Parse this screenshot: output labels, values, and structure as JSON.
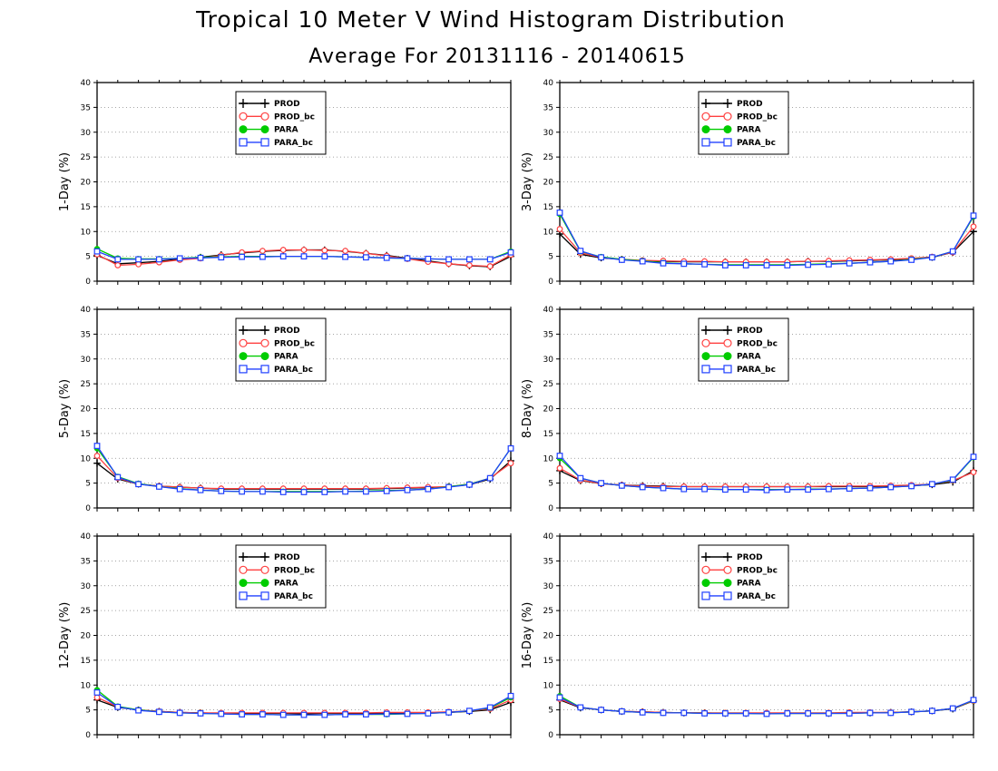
{
  "title": "Tropical 10 Meter V Wind Histogram Distribution",
  "subtitle": "Average For 20131116 - 20140615",
  "legend": [
    {
      "name": "PROD",
      "color": "#000000",
      "marker": "plus"
    },
    {
      "name": "PROD_bc",
      "color": "#ff4040",
      "marker": "open-circle"
    },
    {
      "name": "PARA",
      "color": "#00cc00",
      "marker": "filled-circle"
    },
    {
      "name": "PARA_bc",
      "color": "#2040ff",
      "marker": "open-square"
    }
  ],
  "chart_data": [
    {
      "type": "line",
      "ylabel": "1-Day (%)",
      "ylim": [
        0,
        40
      ],
      "yticks": [
        0,
        5,
        10,
        15,
        20,
        25,
        30,
        35,
        40
      ],
      "grid": "horizontal-dotted",
      "legend_position": "top-center",
      "x": [
        1,
        2,
        3,
        4,
        5,
        6,
        7,
        8,
        9,
        10,
        11,
        12,
        13,
        14,
        15,
        16,
        17,
        18,
        19,
        20,
        21
      ],
      "series": [
        {
          "name": "PROD",
          "values": [
            5.2,
            3.5,
            3.7,
            4.0,
            4.5,
            4.8,
            5.3,
            5.7,
            6.0,
            6.2,
            6.3,
            6.3,
            6.0,
            5.6,
            5.2,
            4.6,
            4.1,
            3.5,
            3.1,
            2.9,
            5.0
          ]
        },
        {
          "name": "PROD_bc",
          "values": [
            5.4,
            3.2,
            3.4,
            3.8,
            4.3,
            4.6,
            5.2,
            5.8,
            6.1,
            6.3,
            6.3,
            6.2,
            6.1,
            5.6,
            5.1,
            4.5,
            3.9,
            3.5,
            3.2,
            3.0,
            5.3
          ]
        },
        {
          "name": "PARA",
          "values": [
            6.5,
            4.6,
            4.5,
            4.5,
            4.6,
            4.8,
            4.9,
            5.0,
            5.0,
            5.0,
            5.0,
            5.0,
            4.9,
            4.8,
            4.7,
            4.6,
            4.5,
            4.4,
            4.4,
            4.4,
            6.0
          ]
        },
        {
          "name": "PARA_bc",
          "values": [
            6.0,
            4.4,
            4.4,
            4.4,
            4.6,
            4.7,
            4.8,
            4.9,
            4.9,
            5.0,
            5.0,
            5.0,
            4.9,
            4.8,
            4.7,
            4.6,
            4.5,
            4.4,
            4.4,
            4.4,
            5.8
          ]
        }
      ]
    },
    {
      "type": "line",
      "ylabel": "3-Day (%)",
      "ylim": [
        0,
        40
      ],
      "yticks": [
        0,
        5,
        10,
        15,
        20,
        25,
        30,
        35,
        40
      ],
      "grid": "horizontal-dotted",
      "legend_position": "top-center",
      "x": [
        1,
        2,
        3,
        4,
        5,
        6,
        7,
        8,
        9,
        10,
        11,
        12,
        13,
        14,
        15,
        16,
        17,
        18,
        19,
        20,
        21
      ],
      "series": [
        {
          "name": "PROD",
          "values": [
            9.5,
            5.4,
            4.7,
            4.4,
            4.1,
            4.0,
            3.9,
            3.9,
            3.9,
            3.9,
            3.9,
            3.9,
            4.0,
            4.0,
            4.1,
            4.2,
            4.3,
            4.5,
            4.8,
            5.8,
            10.0
          ]
        },
        {
          "name": "PROD_bc",
          "values": [
            10.5,
            5.7,
            4.8,
            4.4,
            4.2,
            4.1,
            4.0,
            4.0,
            3.9,
            3.9,
            3.9,
            3.9,
            4.0,
            4.1,
            4.2,
            4.3,
            4.4,
            4.6,
            4.9,
            5.8,
            11.0
          ]
        },
        {
          "name": "PARA",
          "values": [
            13.5,
            6.0,
            4.9,
            4.4,
            4.1,
            3.7,
            3.5,
            3.4,
            3.3,
            3.3,
            3.3,
            3.3,
            3.4,
            3.5,
            3.6,
            3.8,
            4.0,
            4.4,
            4.8,
            6.0,
            13.0
          ]
        },
        {
          "name": "PARA_bc",
          "values": [
            13.8,
            6.1,
            4.8,
            4.3,
            4.0,
            3.6,
            3.5,
            3.4,
            3.2,
            3.2,
            3.2,
            3.2,
            3.3,
            3.4,
            3.6,
            3.8,
            4.0,
            4.3,
            4.8,
            6.0,
            13.2
          ]
        }
      ]
    },
    {
      "type": "line",
      "ylabel": "5-Day (%)",
      "ylim": [
        0,
        40
      ],
      "yticks": [
        0,
        5,
        10,
        15,
        20,
        25,
        30,
        35,
        40
      ],
      "grid": "horizontal-dotted",
      "legend_position": "top-center",
      "x": [
        1,
        2,
        3,
        4,
        5,
        6,
        7,
        8,
        9,
        10,
        11,
        12,
        13,
        14,
        15,
        16,
        17,
        18,
        19,
        20,
        21
      ],
      "series": [
        {
          "name": "PROD",
          "values": [
            9.0,
            5.8,
            4.8,
            4.4,
            4.2,
            4.0,
            3.8,
            3.8,
            3.8,
            3.8,
            3.8,
            3.8,
            3.8,
            3.8,
            3.9,
            4.0,
            4.1,
            4.3,
            4.7,
            5.8,
            9.5
          ]
        },
        {
          "name": "PROD_bc",
          "values": [
            10.5,
            6.0,
            4.8,
            4.4,
            4.2,
            4.0,
            3.9,
            3.9,
            3.9,
            3.9,
            3.9,
            3.9,
            3.9,
            3.9,
            4.0,
            4.1,
            4.2,
            4.3,
            4.8,
            6.0,
            9.0
          ]
        },
        {
          "name": "PARA",
          "values": [
            12.0,
            6.3,
            4.9,
            4.3,
            3.9,
            3.6,
            3.4,
            3.3,
            3.3,
            3.3,
            3.3,
            3.3,
            3.3,
            3.4,
            3.5,
            3.6,
            3.8,
            4.3,
            4.8,
            6.0,
            12.0
          ]
        },
        {
          "name": "PARA_bc",
          "values": [
            12.5,
            6.2,
            4.8,
            4.3,
            3.8,
            3.6,
            3.4,
            3.3,
            3.3,
            3.2,
            3.2,
            3.2,
            3.3,
            3.3,
            3.4,
            3.6,
            3.8,
            4.2,
            4.7,
            6.0,
            12.0
          ]
        }
      ]
    },
    {
      "type": "line",
      "ylabel": "8-Day (%)",
      "ylim": [
        0,
        40
      ],
      "yticks": [
        0,
        5,
        10,
        15,
        20,
        25,
        30,
        35,
        40
      ],
      "grid": "horizontal-dotted",
      "legend_position": "top-center",
      "x": [
        1,
        2,
        3,
        4,
        5,
        6,
        7,
        8,
        9,
        10,
        11,
        12,
        13,
        14,
        15,
        16,
        17,
        18,
        19,
        20,
        21
      ],
      "series": [
        {
          "name": "PROD",
          "values": [
            7.5,
            5.5,
            4.9,
            4.6,
            4.5,
            4.4,
            4.3,
            4.3,
            4.3,
            4.3,
            4.3,
            4.3,
            4.3,
            4.3,
            4.3,
            4.3,
            4.4,
            4.5,
            4.7,
            5.2,
            7.5
          ]
        },
        {
          "name": "PROD_bc",
          "values": [
            8.0,
            5.6,
            4.9,
            4.6,
            4.4,
            4.3,
            4.3,
            4.3,
            4.3,
            4.3,
            4.3,
            4.3,
            4.3,
            4.4,
            4.4,
            4.4,
            4.5,
            4.6,
            4.8,
            5.5,
            7.2
          ]
        },
        {
          "name": "PARA",
          "values": [
            10.0,
            6.0,
            5.0,
            4.5,
            4.2,
            4.0,
            3.8,
            3.8,
            3.7,
            3.7,
            3.7,
            3.7,
            3.8,
            3.8,
            3.9,
            4.0,
            4.2,
            4.4,
            4.8,
            5.6,
            10.2
          ]
        },
        {
          "name": "PARA_bc",
          "values": [
            10.5,
            6.0,
            5.0,
            4.5,
            4.2,
            4.0,
            3.8,
            3.8,
            3.7,
            3.7,
            3.6,
            3.7,
            3.7,
            3.8,
            3.9,
            4.0,
            4.2,
            4.4,
            4.8,
            5.7,
            10.3
          ]
        }
      ]
    },
    {
      "type": "line",
      "ylabel": "12-Day (%)",
      "ylim": [
        0,
        40
      ],
      "yticks": [
        0,
        5,
        10,
        15,
        20,
        25,
        30,
        35,
        40
      ],
      "grid": "horizontal-dotted",
      "legend_position": "top-center",
      "x": [
        1,
        2,
        3,
        4,
        5,
        6,
        7,
        8,
        9,
        10,
        11,
        12,
        13,
        14,
        15,
        16,
        17,
        18,
        19,
        20,
        21
      ],
      "series": [
        {
          "name": "PROD",
          "values": [
            7.0,
            5.5,
            5.0,
            4.7,
            4.5,
            4.4,
            4.3,
            4.3,
            4.3,
            4.3,
            4.2,
            4.3,
            4.3,
            4.3,
            4.3,
            4.4,
            4.4,
            4.5,
            4.7,
            5.0,
            6.5
          ]
        },
        {
          "name": "PROD_bc",
          "values": [
            7.5,
            5.6,
            5.0,
            4.7,
            4.5,
            4.4,
            4.4,
            4.4,
            4.4,
            4.4,
            4.4,
            4.4,
            4.4,
            4.4,
            4.5,
            4.5,
            4.5,
            4.6,
            4.8,
            5.2,
            7.0
          ]
        },
        {
          "name": "PARA",
          "values": [
            9.0,
            5.7,
            5.0,
            4.6,
            4.4,
            4.3,
            4.2,
            4.1,
            4.1,
            4.0,
            4.0,
            4.0,
            4.1,
            4.1,
            4.1,
            4.2,
            4.3,
            4.5,
            4.8,
            5.4,
            7.5
          ]
        },
        {
          "name": "PARA_bc",
          "values": [
            8.5,
            5.6,
            4.9,
            4.6,
            4.4,
            4.3,
            4.2,
            4.1,
            4.1,
            4.0,
            4.0,
            4.0,
            4.1,
            4.1,
            4.2,
            4.2,
            4.3,
            4.5,
            4.8,
            5.5,
            7.8
          ]
        }
      ]
    },
    {
      "type": "line",
      "ylabel": "16-Day (%)",
      "ylim": [
        0,
        40
      ],
      "yticks": [
        0,
        5,
        10,
        15,
        20,
        25,
        30,
        35,
        40
      ],
      "grid": "horizontal-dotted",
      "legend_position": "top-center",
      "x": [
        1,
        2,
        3,
        4,
        5,
        6,
        7,
        8,
        9,
        10,
        11,
        12,
        13,
        14,
        15,
        16,
        17,
        18,
        19,
        20,
        21
      ],
      "series": [
        {
          "name": "PROD",
          "values": [
            7.0,
            5.4,
            5.0,
            4.7,
            4.6,
            4.5,
            4.4,
            4.4,
            4.3,
            4.3,
            4.3,
            4.3,
            4.3,
            4.3,
            4.4,
            4.4,
            4.5,
            4.6,
            4.8,
            5.2,
            6.8
          ]
        },
        {
          "name": "PROD_bc",
          "values": [
            7.2,
            5.5,
            5.0,
            4.7,
            4.6,
            4.5,
            4.4,
            4.4,
            4.4,
            4.4,
            4.4,
            4.4,
            4.4,
            4.4,
            4.5,
            4.5,
            4.5,
            4.6,
            4.8,
            5.3,
            6.8
          ]
        },
        {
          "name": "PARA",
          "values": [
            7.8,
            5.5,
            5.0,
            4.7,
            4.5,
            4.4,
            4.4,
            4.3,
            4.3,
            4.3,
            4.2,
            4.3,
            4.3,
            4.3,
            4.3,
            4.4,
            4.4,
            4.6,
            4.8,
            5.3,
            6.9
          ]
        },
        {
          "name": "PARA_bc",
          "values": [
            7.5,
            5.5,
            5.0,
            4.7,
            4.5,
            4.4,
            4.4,
            4.3,
            4.3,
            4.3,
            4.2,
            4.3,
            4.3,
            4.3,
            4.3,
            4.4,
            4.4,
            4.6,
            4.8,
            5.3,
            7.0
          ]
        }
      ]
    }
  ]
}
